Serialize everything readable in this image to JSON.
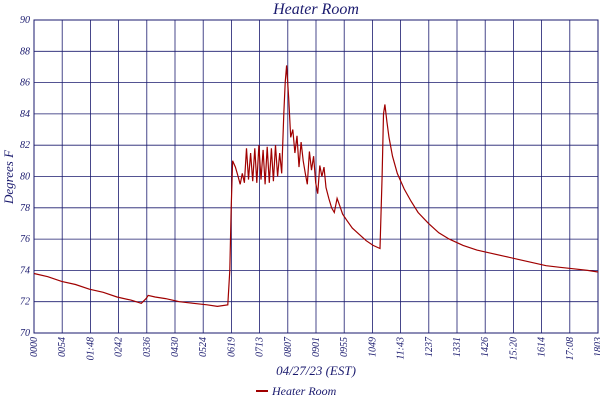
{
  "chart_data": {
    "type": "line",
    "title": "Heater Room",
    "xlabel": "04/27/23 (EST)",
    "ylabel": "Degrees F",
    "ylim": [
      70,
      90
    ],
    "yticks": [
      "70",
      "72",
      "74",
      "76",
      "78",
      "80",
      "82",
      "84",
      "86",
      "88",
      "90"
    ],
    "xticks": [
      "0000",
      "0054",
      "01:48",
      "0242",
      "0336",
      "0430",
      "0524",
      "0619",
      "0713",
      "0807",
      "0901",
      "0955",
      "1049",
      "11:43",
      "1237",
      "1331",
      "1426",
      "15:20",
      "1614",
      "17:08",
      "1803"
    ],
    "grid": true,
    "legend_position": "bottom-center",
    "series": [
      {
        "name": "Heater Room",
        "color": "#a00000",
        "points": [
          [
            0,
            73.8
          ],
          [
            20,
            73.6
          ],
          [
            40,
            73.3
          ],
          [
            60,
            73.1
          ],
          [
            80,
            72.8
          ],
          [
            100,
            72.6
          ],
          [
            120,
            72.3
          ],
          [
            140,
            72.1
          ],
          [
            155,
            71.9
          ],
          [
            162,
            72.2
          ],
          [
            165,
            72.4
          ],
          [
            175,
            72.3
          ],
          [
            190,
            72.2
          ],
          [
            210,
            72.0
          ],
          [
            230,
            71.9
          ],
          [
            250,
            71.8
          ],
          [
            265,
            71.7
          ],
          [
            280,
            71.8
          ],
          [
            283,
            74.0
          ],
          [
            285,
            78.0
          ],
          [
            287,
            81.0
          ],
          [
            291,
            80.6
          ],
          [
            295,
            80.0
          ],
          [
            298,
            79.5
          ],
          [
            301,
            80.2
          ],
          [
            304,
            79.6
          ],
          [
            307,
            81.8
          ],
          [
            310,
            79.8
          ],
          [
            313,
            81.5
          ],
          [
            316,
            79.7
          ],
          [
            319,
            81.8
          ],
          [
            322,
            79.6
          ],
          [
            325,
            82.0
          ],
          [
            328,
            79.8
          ],
          [
            331,
            81.7
          ],
          [
            334,
            79.5
          ],
          [
            337,
            81.9
          ],
          [
            340,
            79.6
          ],
          [
            343,
            81.8
          ],
          [
            346,
            79.7
          ],
          [
            349,
            82.0
          ],
          [
            352,
            80.0
          ],
          [
            355,
            81.5
          ],
          [
            358,
            80.2
          ],
          [
            361,
            84.0
          ],
          [
            363,
            86.0
          ],
          [
            365,
            87.1
          ],
          [
            368,
            85.0
          ],
          [
            371,
            82.5
          ],
          [
            374,
            83.0
          ],
          [
            377,
            81.5
          ],
          [
            380,
            82.6
          ],
          [
            383,
            80.6
          ],
          [
            386,
            82.2
          ],
          [
            389,
            81.0
          ],
          [
            392,
            80.2
          ],
          [
            395,
            79.5
          ],
          [
            398,
            81.6
          ],
          [
            401,
            80.4
          ],
          [
            404,
            81.3
          ],
          [
            407,
            79.6
          ],
          [
            410,
            78.9
          ],
          [
            413,
            80.7
          ],
          [
            416,
            80.0
          ],
          [
            419,
            80.6
          ],
          [
            422,
            79.3
          ],
          [
            426,
            78.6
          ],
          [
            430,
            78.0
          ],
          [
            434,
            77.7
          ],
          [
            438,
            78.6
          ],
          [
            442,
            78.1
          ],
          [
            446,
            77.6
          ],
          [
            452,
            77.2
          ],
          [
            460,
            76.7
          ],
          [
            470,
            76.3
          ],
          [
            480,
            75.9
          ],
          [
            490,
            75.6
          ],
          [
            500,
            75.4
          ],
          [
            503,
            80.0
          ],
          [
            505,
            84.0
          ],
          [
            507,
            84.6
          ],
          [
            510,
            83.5
          ],
          [
            513,
            82.5
          ],
          [
            518,
            81.3
          ],
          [
            525,
            80.2
          ],
          [
            535,
            79.2
          ],
          [
            545,
            78.4
          ],
          [
            555,
            77.7
          ],
          [
            570,
            77.0
          ],
          [
            585,
            76.4
          ],
          [
            600,
            76.0
          ],
          [
            620,
            75.6
          ],
          [
            640,
            75.3
          ],
          [
            660,
            75.1
          ],
          [
            680,
            74.9
          ],
          [
            700,
            74.7
          ],
          [
            720,
            74.5
          ],
          [
            740,
            74.3
          ],
          [
            760,
            74.2
          ],
          [
            780,
            74.1
          ],
          [
            800,
            74.0
          ],
          [
            815,
            73.9
          ]
        ]
      }
    ]
  }
}
